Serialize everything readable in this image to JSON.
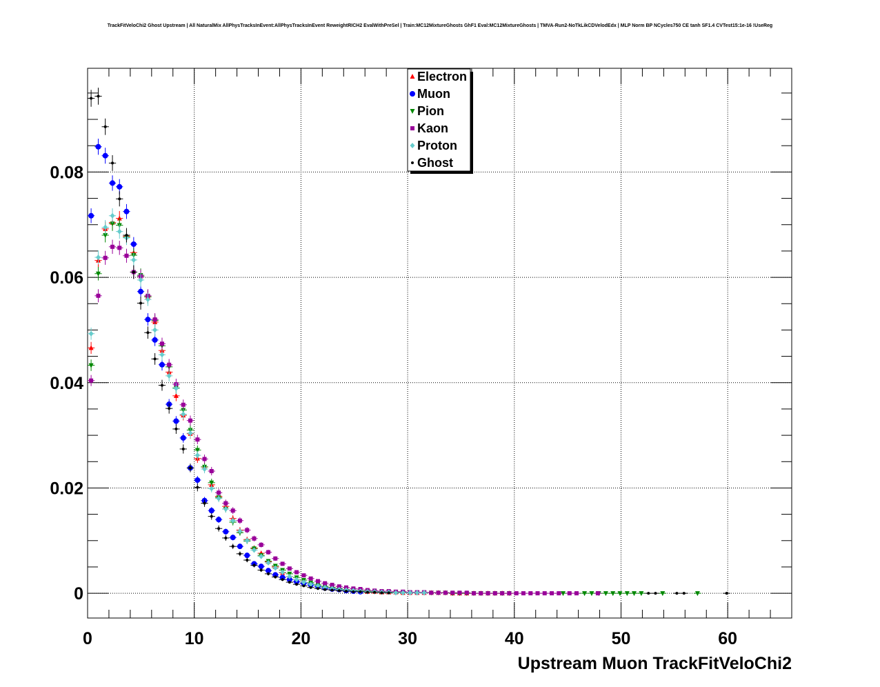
{
  "chart_data": {
    "type": "scatter",
    "title": "TrackFitVeloChi2 Ghost Upstream | All NaturalMix AllPhysTracksInEvent:AllPhysTracksInEvent ReweightRICH2 EvalWithPreSel | Train:MC12MixtureGhosts GhF1 Eval:MC12MixtureGhosts | TMVA-Run2-NoTkLikCDVelodEdx | MLP Norm BP NCycles750 CE tanh SF1.4 CVTest15:1e-16 !UseReg",
    "xlabel": "Upstream Muon TrackFitVeloChi2",
    "ylabel": "",
    "xlim": [
      0,
      66
    ],
    "ylim": [
      -0.0047,
      0.0997
    ],
    "xticks": [
      0,
      10,
      20,
      30,
      40,
      50,
      60
    ],
    "xtick_labels": [
      "0",
      "10",
      "20",
      "30",
      "40",
      "50",
      "60"
    ],
    "yticks": [
      0,
      0.02,
      0.04,
      0.06,
      0.08
    ],
    "ytick_labels": [
      "0",
      "0.02",
      "0.04",
      "0.06",
      "0.08"
    ],
    "grid": true,
    "legend_position": "top-center",
    "series": [
      {
        "name": "Electron",
        "color": "#ff0000",
        "marker": "triangle-up",
        "x": [
          0.33,
          1.0,
          1.66,
          2.33,
          2.99,
          3.65,
          4.32,
          4.98,
          5.65,
          6.31,
          6.98,
          7.64,
          8.3,
          8.97,
          9.63,
          10.3,
          10.96,
          11.62,
          12.29,
          12.95,
          13.62,
          14.28,
          14.95,
          15.61,
          16.27,
          16.94,
          17.6,
          18.27,
          18.93,
          19.59,
          20.26,
          20.92,
          21.59,
          22.25,
          22.92,
          23.58,
          24.24,
          24.91,
          25.57,
          26.24,
          26.9,
          27.57,
          28.23,
          28.89,
          29.56,
          30.22,
          30.89,
          31.55,
          32.21,
          32.88,
          33.54,
          34.21,
          34.87,
          35.54,
          36.2,
          36.86,
          37.53,
          38.19,
          38.86,
          39.52
        ],
        "y": [
          0.0466,
          0.0632,
          0.0692,
          0.0704,
          0.0712,
          0.0678,
          0.0647,
          0.0602,
          0.0563,
          0.0515,
          0.0461,
          0.042,
          0.0375,
          0.0338,
          0.0303,
          0.0256,
          0.024,
          0.0206,
          0.0184,
          0.0165,
          0.0142,
          0.012,
          0.0102,
          0.0086,
          0.0076,
          0.006,
          0.005,
          0.0039,
          0.0032,
          0.0026,
          0.0021,
          0.0017,
          0.0014,
          0.0011,
          0.0009,
          0.0007,
          0.0006,
          0.0005,
          0.0004,
          0.0003,
          0.0003,
          0.0002,
          0.0002,
          0.0002,
          0.0001,
          0.0001,
          0.0001,
          0.0001,
          0.0001,
          0.0001,
          0.0001,
          0.0,
          0.0,
          0.0,
          0.0,
          0.0,
          0.0,
          0.0,
          0.0,
          0.0
        ]
      },
      {
        "name": "Muon",
        "color": "#0000ff",
        "marker": "circle",
        "x": [
          0.33,
          1.0,
          1.66,
          2.33,
          2.99,
          3.65,
          4.32,
          4.98,
          5.65,
          6.31,
          6.98,
          7.64,
          8.3,
          8.97,
          9.63,
          10.3,
          10.96,
          11.62,
          12.29,
          12.95,
          13.62,
          14.28,
          14.95,
          15.61,
          16.27,
          16.94,
          17.6,
          18.27,
          18.93,
          19.59,
          20.26,
          20.92,
          21.59,
          22.25,
          22.92,
          23.58,
          24.24,
          24.91,
          25.57
        ],
        "y": [
          0.0717,
          0.0848,
          0.0831,
          0.0779,
          0.0772,
          0.0725,
          0.0663,
          0.0573,
          0.052,
          0.0481,
          0.0434,
          0.0359,
          0.0327,
          0.0295,
          0.0238,
          0.0215,
          0.0176,
          0.0157,
          0.014,
          0.0117,
          0.0106,
          0.0089,
          0.0072,
          0.0056,
          0.0051,
          0.0043,
          0.0035,
          0.003,
          0.0026,
          0.0022,
          0.0019,
          0.0016,
          0.0013,
          0.001,
          0.0008,
          0.0007,
          0.0005,
          0.0004,
          0.0003
        ]
      },
      {
        "name": "Pion",
        "color": "#008800",
        "marker": "triangle-down",
        "x": [
          0.33,
          1.0,
          1.66,
          2.33,
          2.99,
          3.65,
          4.32,
          4.98,
          5.65,
          6.31,
          6.98,
          7.64,
          8.3,
          8.97,
          9.63,
          10.3,
          10.96,
          11.62,
          12.29,
          12.95,
          13.62,
          14.28,
          14.95,
          15.61,
          16.27,
          16.94,
          17.6,
          18.27,
          18.93,
          19.59,
          20.26,
          20.92,
          21.59,
          22.25,
          22.92,
          23.58,
          24.24,
          24.91,
          25.57,
          26.24,
          26.9,
          27.57,
          28.23,
          28.89,
          29.56,
          30.22,
          30.89,
          31.55,
          32.21,
          32.88,
          33.54,
          34.21,
          34.87,
          35.54,
          36.2,
          36.86,
          37.53,
          38.19,
          38.86,
          39.52,
          44.57,
          46.58,
          47.25,
          47.91,
          48.57,
          49.24,
          49.9,
          50.57,
          51.23,
          51.9,
          53.9,
          57.17
        ],
        "y": [
          0.0433,
          0.0607,
          0.068,
          0.0702,
          0.0699,
          0.0676,
          0.0642,
          0.0604,
          0.0563,
          0.0518,
          0.047,
          0.043,
          0.039,
          0.0348,
          0.031,
          0.0272,
          0.024,
          0.021,
          0.0182,
          0.016,
          0.0135,
          0.0115,
          0.0099,
          0.0085,
          0.0072,
          0.0061,
          0.0052,
          0.0044,
          0.0037,
          0.003,
          0.0025,
          0.002,
          0.0016,
          0.0013,
          0.0011,
          0.0009,
          0.0007,
          0.0006,
          0.0005,
          0.0004,
          0.0003,
          0.0003,
          0.0002,
          0.0002,
          0.0002,
          0.0001,
          0.0001,
          0.0001,
          0.0001,
          0.0001,
          0.0001,
          0.0,
          0.0,
          0.0,
          0.0,
          0.0,
          0.0,
          0.0,
          0.0,
          0.0,
          0.0,
          0.0,
          0.0,
          0.0,
          0.0,
          0.0,
          0.0,
          0.0,
          0.0,
          0.0,
          0.0,
          0.0
        ]
      },
      {
        "name": "Kaon",
        "color": "#990099",
        "marker": "square",
        "x": [
          0.33,
          1.0,
          1.66,
          2.33,
          2.99,
          3.65,
          4.32,
          4.98,
          5.65,
          6.31,
          6.98,
          7.64,
          8.3,
          8.97,
          9.63,
          10.3,
          10.96,
          11.62,
          12.29,
          12.95,
          13.62,
          14.28,
          14.95,
          15.61,
          16.27,
          16.94,
          17.6,
          18.27,
          18.93,
          19.59,
          20.26,
          20.92,
          21.59,
          22.25,
          22.92,
          23.58,
          24.24,
          24.91,
          25.57,
          26.24,
          26.9,
          27.57,
          28.23,
          28.89,
          29.56,
          30.22,
          30.89,
          31.55,
          32.21,
          32.88,
          33.54,
          34.21,
          34.87,
          35.54,
          36.2,
          36.86,
          37.53,
          38.19,
          38.86,
          39.52,
          40.19,
          40.85,
          41.52,
          42.18,
          42.84,
          43.51,
          44.17,
          45.17,
          45.83,
          47.83
        ],
        "y": [
          0.0404,
          0.0565,
          0.0637,
          0.0658,
          0.0656,
          0.0641,
          0.061,
          0.0602,
          0.0565,
          0.052,
          0.0474,
          0.0434,
          0.0397,
          0.0358,
          0.0328,
          0.0292,
          0.0255,
          0.0232,
          0.0191,
          0.0171,
          0.0157,
          0.0138,
          0.012,
          0.0104,
          0.0092,
          0.0078,
          0.0066,
          0.0056,
          0.0047,
          0.004,
          0.0034,
          0.0028,
          0.0023,
          0.0019,
          0.0016,
          0.0013,
          0.0011,
          0.0009,
          0.0008,
          0.0006,
          0.0005,
          0.0004,
          0.0004,
          0.0003,
          0.0003,
          0.0002,
          0.0002,
          0.0002,
          0.0001,
          0.0001,
          0.0001,
          0.0001,
          0.0001,
          0.0001,
          0.0,
          0.0,
          0.0,
          0.0,
          0.0,
          0.0,
          0.0,
          0.0,
          0.0,
          0.0,
          0.0,
          0.0,
          0.0,
          0.0,
          0.0,
          0.0
        ]
      },
      {
        "name": "Proton",
        "color": "#66cccc",
        "marker": "diamond",
        "x": [
          0.33,
          1.0,
          1.66,
          2.33,
          2.99,
          3.65,
          4.32,
          4.98,
          5.65,
          6.31,
          6.98,
          7.64,
          8.3,
          8.97,
          9.63,
          10.3,
          10.96,
          11.62,
          12.29,
          12.95,
          13.62,
          14.28,
          14.95,
          15.61,
          16.27,
          16.94,
          17.6,
          18.27,
          18.93,
          19.59,
          20.26,
          20.92,
          21.59,
          22.25,
          22.92,
          23.58,
          24.24,
          24.91,
          25.57,
          26.24,
          26.9,
          27.57,
          28.23,
          28.89,
          29.56,
          30.22,
          30.89,
          31.55
        ],
        "y": [
          0.0493,
          0.0638,
          0.0695,
          0.0717,
          0.0687,
          0.0675,
          0.0633,
          0.0595,
          0.0558,
          0.05,
          0.0453,
          0.0413,
          0.0389,
          0.034,
          0.0304,
          0.0262,
          0.0236,
          0.0199,
          0.018,
          0.016,
          0.0138,
          0.0118,
          0.01,
          0.0082,
          0.007,
          0.0058,
          0.0048,
          0.004,
          0.0032,
          0.0026,
          0.0021,
          0.0017,
          0.0014,
          0.0011,
          0.0009,
          0.0007,
          0.0006,
          0.0005,
          0.0004,
          0.0003,
          0.0003,
          0.0002,
          0.0002,
          0.0001,
          0.0001,
          0.0001,
          0.0001,
          0.0001
        ]
      },
      {
        "name": "Ghost",
        "color": "#000000",
        "marker": "dot",
        "x": [
          0.33,
          1.0,
          1.66,
          2.33,
          2.99,
          3.65,
          4.32,
          4.98,
          5.65,
          6.31,
          6.98,
          7.64,
          8.3,
          8.97,
          9.63,
          10.3,
          10.96,
          11.62,
          12.29,
          12.95,
          13.62,
          14.28,
          14.95,
          15.61,
          16.27,
          16.94,
          17.6,
          18.27,
          18.93,
          19.59,
          20.26,
          20.92,
          21.59,
          22.25,
          22.92,
          23.58,
          24.24,
          24.91,
          25.57,
          26.24,
          26.9,
          27.57,
          28.23,
          52.57,
          53.23,
          55.23,
          55.9,
          59.9
        ],
        "y": [
          0.094,
          0.0944,
          0.0886,
          0.0817,
          0.0749,
          0.068,
          0.061,
          0.0551,
          0.0495,
          0.0445,
          0.0395,
          0.0351,
          0.0312,
          0.0274,
          0.0238,
          0.0201,
          0.0171,
          0.0146,
          0.0123,
          0.0105,
          0.0089,
          0.0075,
          0.0063,
          0.0053,
          0.0044,
          0.0037,
          0.0031,
          0.0026,
          0.0021,
          0.0017,
          0.0014,
          0.0011,
          0.0009,
          0.0007,
          0.0006,
          0.0005,
          0.0004,
          0.0003,
          0.0003,
          0.0002,
          0.0002,
          0.0001,
          0.0001,
          0.0,
          0.0,
          0.0,
          0.0,
          0.0
        ]
      }
    ]
  }
}
